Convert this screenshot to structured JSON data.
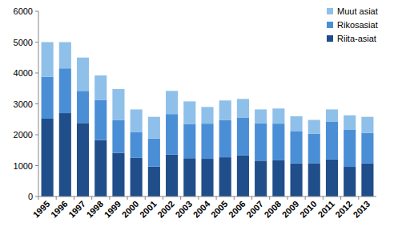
{
  "chart_data": {
    "type": "bar",
    "stacked": true,
    "legend": "top-right",
    "categories": [
      "1995",
      "1996",
      "1997",
      "1998",
      "1999",
      "2000",
      "2001",
      "2002",
      "2003",
      "2004",
      "2005",
      "2006",
      "2007",
      "2008",
      "2009",
      "2010",
      "2011",
      "2012",
      "2013"
    ],
    "series": [
      {
        "name": "Riita-asiat",
        "color": "#1f4e8a",
        "values": [
          2520,
          2700,
          2380,
          1830,
          1410,
          1250,
          970,
          1360,
          1240,
          1220,
          1270,
          1330,
          1160,
          1170,
          1070,
          1080,
          1200,
          960,
          1070
        ]
      },
      {
        "name": "Rikosasiat",
        "color": "#4a8fd6",
        "values": [
          1360,
          1450,
          1040,
          1290,
          1070,
          830,
          910,
          1310,
          1110,
          1140,
          1210,
          1230,
          1210,
          1190,
          1050,
          950,
          1230,
          1210,
          990
        ]
      },
      {
        "name": "Muut asiat",
        "color": "#8ec0ea",
        "values": [
          1120,
          850,
          1080,
          800,
          1000,
          740,
          700,
          750,
          730,
          540,
          630,
          600,
          450,
          490,
          480,
          450,
          390,
          460,
          520
        ]
      }
    ],
    "ylim": [
      0,
      6000
    ],
    "yticks": [
      0,
      1000,
      2000,
      3000,
      4000,
      5000,
      6000
    ],
    "grid": false
  }
}
